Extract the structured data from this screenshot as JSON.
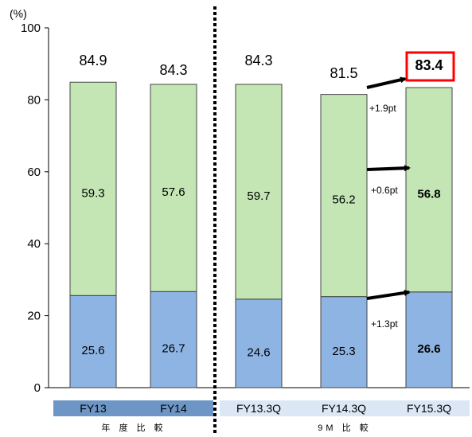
{
  "chart_data": {
    "type": "bar",
    "stacked": true,
    "unit_label": "(%)",
    "ylim": [
      0,
      100
    ],
    "y_ticks": [
      0,
      20,
      40,
      60,
      80,
      100
    ],
    "categories": [
      "FY13",
      "FY14",
      "FY13.3Q",
      "FY14.3Q",
      "FY15.3Q"
    ],
    "series": [
      {
        "values": [
          25.6,
          26.7,
          24.6,
          25.3,
          26.6
        ],
        "value_labels": [
          "25.6",
          "26.7",
          "24.6",
          "25.3",
          "26.6"
        ],
        "color": "#8eb4e3"
      },
      {
        "values": [
          59.3,
          57.6,
          59.7,
          56.2,
          56.8
        ],
        "value_labels": [
          "59.3",
          "57.6",
          "59.7",
          "56.2",
          "56.8"
        ],
        "color": "#c3e6b4"
      }
    ],
    "totals": [
      84.9,
      84.3,
      84.3,
      81.5,
      83.4
    ],
    "total_labels": [
      "84.9",
      "84.3",
      "84.3",
      "81.5",
      "83.4"
    ],
    "highlighted_total_index": 4,
    "bold_value_index": 4,
    "groups": [
      {
        "label": "年 度 比 較",
        "categories": [
          "FY13",
          "FY14"
        ]
      },
      {
        "label": "9M 比 較",
        "categories": [
          "FY13.3Q",
          "FY14.3Q",
          "FY15.3Q"
        ]
      }
    ],
    "annotations": [
      {
        "text": "+1.9pt",
        "target": "total"
      },
      {
        "text": "+0.6pt",
        "target": "series_2"
      },
      {
        "text": "+1.3pt",
        "target": "series_1"
      }
    ],
    "colors": {
      "bottom_bar": "#8eb4e3",
      "top_bar": "#c3e6b4",
      "group1_band": "#6d96c6",
      "group2_band": "#dbe7f5",
      "highlight_box": "#ff0000"
    }
  }
}
